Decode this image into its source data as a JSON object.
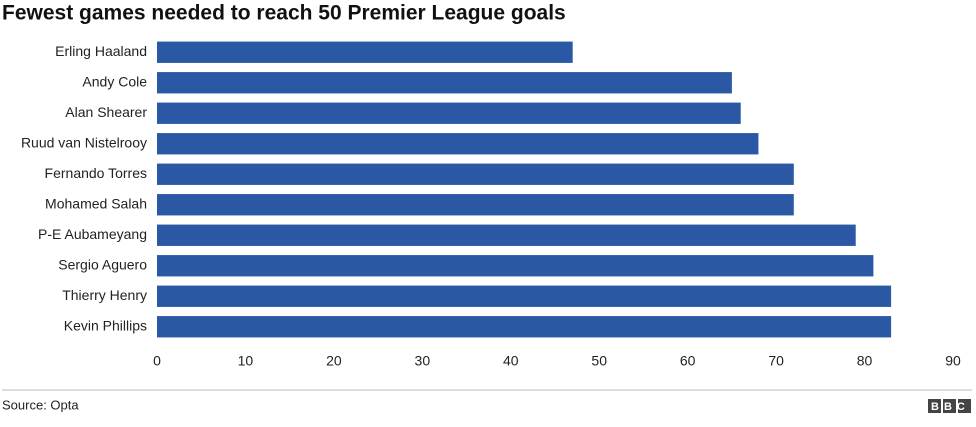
{
  "chart_data": {
    "type": "hbar",
    "title": "Fewest games needed to reach 50 Premier League goals",
    "categories": [
      "Erling Haaland",
      "Andy Cole",
      "Alan Shearer",
      "Ruud van Nistelrooy",
      "Fernando Torres",
      "Mohamed Salah",
      "P-E Aubameyang",
      "Sergio Aguero",
      "Thierry Henry",
      "Kevin Phillips"
    ],
    "values": [
      47,
      65,
      66,
      68,
      72,
      72,
      79,
      81,
      83,
      83
    ],
    "color": "#2b58a5",
    "xlim": [
      0,
      90
    ],
    "xticks": [
      0,
      10,
      20,
      30,
      40,
      50,
      60,
      70,
      80,
      90
    ],
    "source": "Source: Opta",
    "logo": "BBC"
  }
}
